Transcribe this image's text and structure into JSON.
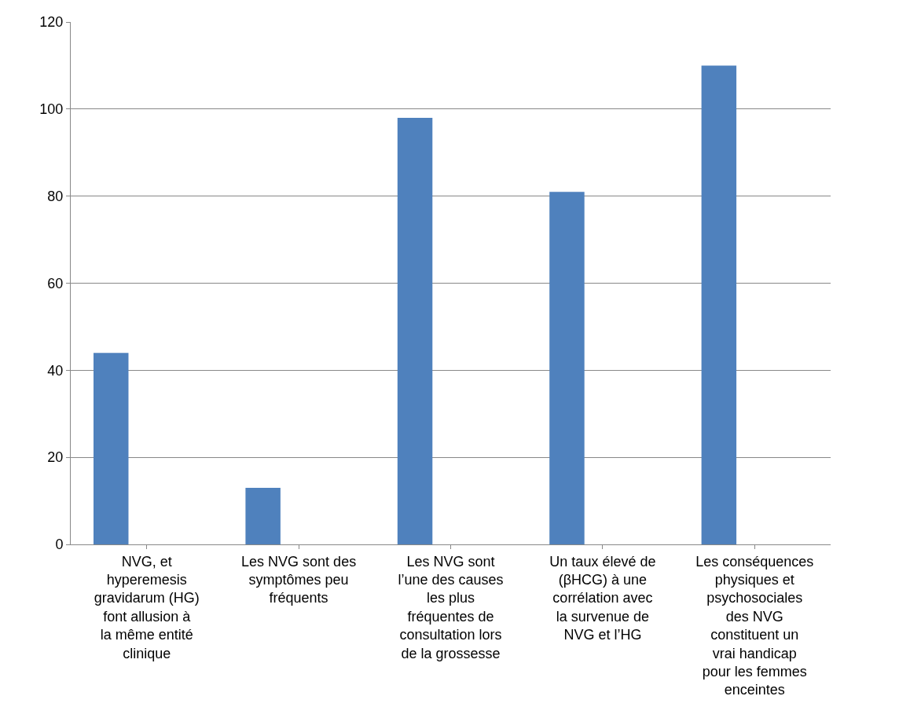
{
  "chart_data": {
    "type": "bar",
    "categories": [
      "NVG, et hyperemesis gravidarum (HG) font allusion à la même entité clinique",
      "Les NVG sont des symptômes peu fréquents",
      "Les NVG sont l’une des causes les plus fréquentes de consultation lors de la grossesse",
      "Un taux élevé de (βHCG) à une corrélation avec la survenue de NVG et l’HG",
      "Les conséquences physiques et psychosociales des NVG constituent un vrai handicap pour les femmes enceintes"
    ],
    "values": [
      44,
      13,
      98,
      81,
      110
    ],
    "color": "#4f81bd",
    "ylim": [
      0,
      120
    ],
    "yticks": [
      0,
      20,
      40,
      60,
      80,
      100,
      120
    ],
    "grid": "y",
    "legend": false
  }
}
